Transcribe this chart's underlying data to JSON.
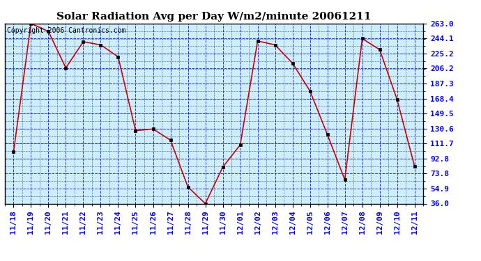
{
  "title": "Solar Radiation Avg per Day W/m2/minute 20061211",
  "copyright_text": "Copyright 2006 Cantronics.com",
  "x_labels": [
    "11/18",
    "11/19",
    "11/20",
    "11/21",
    "11/22",
    "11/23",
    "11/24",
    "11/25",
    "11/26",
    "11/27",
    "11/28",
    "11/29",
    "11/30",
    "12/01",
    "12/02",
    "12/03",
    "12/04",
    "12/05",
    "12/06",
    "12/07",
    "12/08",
    "12/09",
    "12/10",
    "12/11"
  ],
  "y_values": [
    101,
    263,
    253,
    207,
    240,
    236,
    221,
    128,
    130,
    116,
    57,
    36,
    82,
    110,
    241,
    236,
    213,
    178,
    123,
    66,
    244,
    230,
    167,
    83
  ],
  "ylim_min": 36.0,
  "ylim_max": 263.0,
  "y_ticks": [
    36.0,
    54.9,
    73.8,
    92.8,
    111.7,
    130.6,
    149.5,
    168.4,
    187.3,
    206.2,
    225.2,
    244.1,
    263.0
  ],
  "line_color": "#cc0000",
  "marker_color": "#000000",
  "bg_color": "#cceeff",
  "title_fontsize": 11,
  "tick_fontsize": 8,
  "copyright_fontsize": 7
}
